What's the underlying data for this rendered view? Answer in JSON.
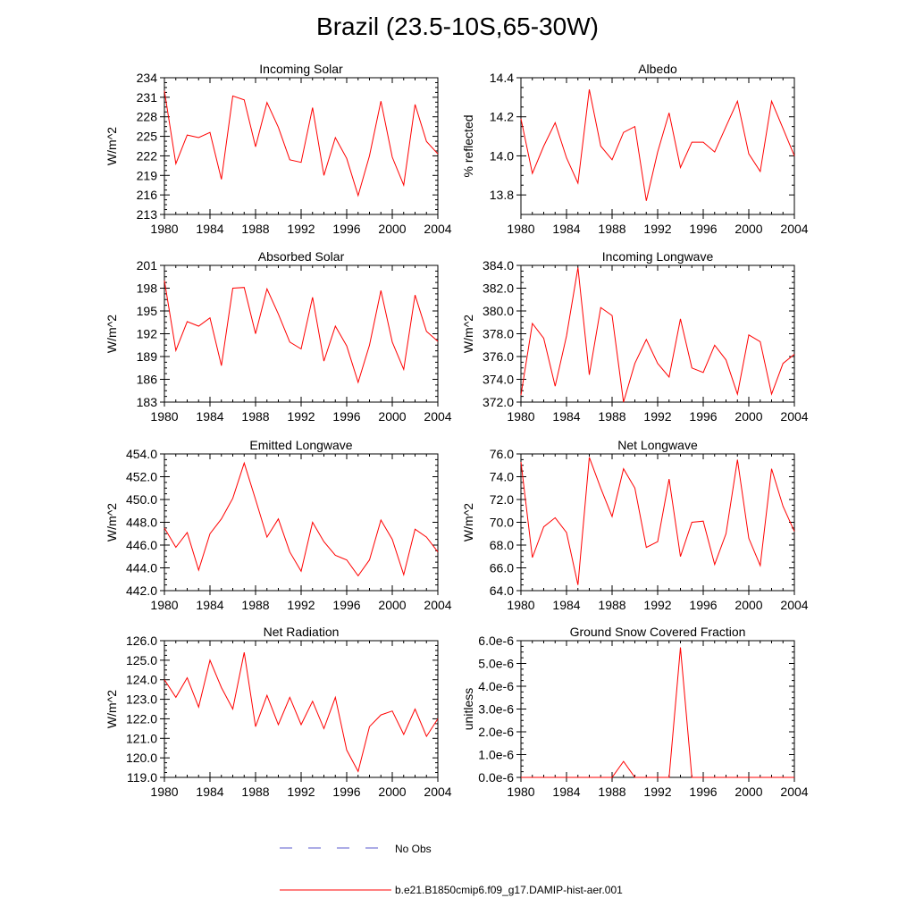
{
  "title": "Brazil (23.5-10S,65-30W)",
  "legend": {
    "entries": [
      {
        "label": "No Obs",
        "style": "dashed",
        "color": "#5a5acd"
      },
      {
        "label": "b.e21.B1850cmip6.f09_g17.DAMIP-hist-aer.001",
        "style": "solid",
        "color": "#ff0000"
      }
    ]
  },
  "chart_data": [
    {
      "type": "line",
      "title": "Incoming Solar",
      "ylabel": "W/m^2",
      "xlim": [
        1980,
        2004
      ],
      "ylim": [
        213,
        234
      ],
      "yticks": [
        213,
        216,
        219,
        222,
        225,
        228,
        231,
        234
      ],
      "ytick_labels": [
        "213",
        "216",
        "219",
        "222",
        "225",
        "228",
        "231",
        "234"
      ],
      "xticks": [
        1980,
        1984,
        1988,
        1992,
        1996,
        2000,
        2004
      ],
      "series": [
        {
          "color": "#ff0000",
          "x": [
            1980,
            1981,
            1982,
            1983,
            1984,
            1985,
            1986,
            1987,
            1988,
            1989,
            1990,
            1991,
            1992,
            1993,
            1994,
            1995,
            1996,
            1997,
            1998,
            1999,
            2000,
            2001,
            2002,
            2003,
            2004
          ],
          "values": [
            232.0,
            220.8,
            225.2,
            224.8,
            225.6,
            218.4,
            231.2,
            230.6,
            223.4,
            230.2,
            226.4,
            221.4,
            221.0,
            229.4,
            219.0,
            224.8,
            221.6,
            215.9,
            222.0,
            230.4,
            221.8,
            217.5,
            229.9,
            224.2,
            222.3
          ]
        }
      ]
    },
    {
      "type": "line",
      "title": "Albedo",
      "ylabel": "% reflected",
      "xlim": [
        1980,
        2004
      ],
      "ylim": [
        13.7,
        14.4
      ],
      "yticks": [
        13.8,
        14.0,
        14.2,
        14.4
      ],
      "ytick_labels": [
        "13.8",
        "14.0",
        "14.2",
        "14.4"
      ],
      "xticks": [
        1980,
        1984,
        1988,
        1992,
        1996,
        2000,
        2004
      ],
      "series": [
        {
          "color": "#ff0000",
          "x": [
            1980,
            1981,
            1982,
            1983,
            1984,
            1985,
            1986,
            1987,
            1988,
            1989,
            1990,
            1991,
            1992,
            1993,
            1994,
            1995,
            1996,
            1997,
            1998,
            1999,
            2000,
            2001,
            2002,
            2003,
            2004
          ],
          "values": [
            14.19,
            13.91,
            14.05,
            14.17,
            13.99,
            13.86,
            14.34,
            14.05,
            13.98,
            14.12,
            14.15,
            13.77,
            14.02,
            14.22,
            13.94,
            14.07,
            14.07,
            14.02,
            14.15,
            14.28,
            14.01,
            13.92,
            14.28,
            14.14,
            14.0
          ]
        }
      ]
    },
    {
      "type": "line",
      "title": "Absorbed Solar",
      "ylabel": "W/m^2",
      "xlim": [
        1980,
        2004
      ],
      "ylim": [
        183,
        201
      ],
      "yticks": [
        183,
        186,
        189,
        192,
        195,
        198,
        201
      ],
      "ytick_labels": [
        "183",
        "186",
        "189",
        "192",
        "195",
        "198",
        "201"
      ],
      "xticks": [
        1980,
        1984,
        1988,
        1992,
        1996,
        2000,
        2004
      ],
      "series": [
        {
          "color": "#ff0000",
          "x": [
            1980,
            1981,
            1982,
            1983,
            1984,
            1985,
            1986,
            1987,
            1988,
            1989,
            1990,
            1991,
            1992,
            1993,
            1994,
            1995,
            1996,
            1997,
            1998,
            1999,
            2000,
            2001,
            2002,
            2003,
            2004
          ],
          "values": [
            199.0,
            189.8,
            193.6,
            193.0,
            194.1,
            187.8,
            198.0,
            198.1,
            192.0,
            197.9,
            194.6,
            190.9,
            190.0,
            196.8,
            188.4,
            193.0,
            190.4,
            185.6,
            190.5,
            197.7,
            190.9,
            187.3,
            197.1,
            192.3,
            191.0
          ]
        }
      ]
    },
    {
      "type": "line",
      "title": "Incoming Longwave",
      "ylabel": "W/m^2",
      "xlim": [
        1980,
        2004
      ],
      "ylim": [
        372.0,
        384.0
      ],
      "yticks": [
        372.0,
        374.0,
        376.0,
        378.0,
        380.0,
        382.0,
        384.0
      ],
      "ytick_labels": [
        "372.0",
        "374.0",
        "376.0",
        "378.0",
        "380.0",
        "382.0",
        "384.0"
      ],
      "xticks": [
        1980,
        1984,
        1988,
        1992,
        1996,
        2000,
        2004
      ],
      "series": [
        {
          "color": "#ff0000",
          "x": [
            1980,
            1981,
            1982,
            1983,
            1984,
            1985,
            1986,
            1987,
            1988,
            1989,
            1990,
            1991,
            1992,
            1993,
            1994,
            1995,
            1996,
            1997,
            1998,
            1999,
            2000,
            2001,
            2002,
            2003,
            2004
          ],
          "values": [
            372.6,
            378.9,
            377.6,
            373.4,
            377.8,
            383.8,
            374.4,
            380.3,
            379.6,
            372.0,
            375.4,
            377.5,
            375.4,
            374.2,
            379.3,
            375.0,
            374.6,
            377.0,
            375.7,
            372.7,
            377.9,
            377.3,
            372.7,
            375.4,
            376.2
          ]
        }
      ]
    },
    {
      "type": "line",
      "title": "Emitted Longwave",
      "ylabel": "W/m^2",
      "xlim": [
        1980,
        2004
      ],
      "ylim": [
        442.0,
        454.0
      ],
      "yticks": [
        442.0,
        444.0,
        446.0,
        448.0,
        450.0,
        452.0,
        454.0
      ],
      "ytick_labels": [
        "442.0",
        "444.0",
        "446.0",
        "448.0",
        "450.0",
        "452.0",
        "454.0"
      ],
      "xticks": [
        1980,
        1984,
        1988,
        1992,
        1996,
        2000,
        2004
      ],
      "series": [
        {
          "color": "#ff0000",
          "x": [
            1980,
            1981,
            1982,
            1983,
            1984,
            1985,
            1986,
            1987,
            1988,
            1989,
            1990,
            1991,
            1992,
            1993,
            1994,
            1995,
            1996,
            1997,
            1998,
            1999,
            2000,
            2001,
            2002,
            2003,
            2004
          ],
          "values": [
            447.5,
            445.8,
            447.1,
            443.8,
            447.0,
            448.3,
            450.1,
            453.2,
            450.0,
            446.7,
            448.3,
            445.4,
            443.7,
            448.0,
            446.3,
            445.1,
            444.7,
            443.3,
            444.7,
            448.2,
            446.5,
            443.4,
            447.4,
            446.7,
            445.4
          ]
        }
      ]
    },
    {
      "type": "line",
      "title": "Net Longwave",
      "ylabel": "W/m^2",
      "xlim": [
        1980,
        2004
      ],
      "ylim": [
        64.0,
        76.0
      ],
      "yticks": [
        64.0,
        66.0,
        68.0,
        70.0,
        72.0,
        74.0,
        76.0
      ],
      "ytick_labels": [
        "64.0",
        "66.0",
        "68.0",
        "70.0",
        "72.0",
        "74.0",
        "76.0"
      ],
      "xticks": [
        1980,
        1984,
        1988,
        1992,
        1996,
        2000,
        2004
      ],
      "series": [
        {
          "color": "#ff0000",
          "x": [
            1980,
            1981,
            1982,
            1983,
            1984,
            1985,
            1986,
            1987,
            1988,
            1989,
            1990,
            1991,
            1992,
            1993,
            1994,
            1995,
            1996,
            1997,
            1998,
            1999,
            2000,
            2001,
            2002,
            2003,
            2004
          ],
          "values": [
            75.3,
            66.9,
            69.6,
            70.4,
            69.1,
            64.5,
            75.7,
            73.0,
            70.5,
            74.7,
            73.0,
            67.8,
            68.3,
            73.8,
            67.0,
            70.0,
            70.1,
            66.3,
            69.0,
            75.5,
            68.6,
            66.2,
            74.7,
            71.4,
            69.2
          ]
        }
      ]
    },
    {
      "type": "line",
      "title": "Net Radiation",
      "ylabel": "W/m^2",
      "xlim": [
        1980,
        2004
      ],
      "ylim": [
        119.0,
        126.0
      ],
      "yticks": [
        119.0,
        120.0,
        121.0,
        122.0,
        123.0,
        124.0,
        125.0,
        126.0
      ],
      "ytick_labels": [
        "119.0",
        "120.0",
        "121.0",
        "122.0",
        "123.0",
        "124.0",
        "125.0",
        "126.0"
      ],
      "xticks": [
        1980,
        1984,
        1988,
        1992,
        1996,
        2000,
        2004
      ],
      "series": [
        {
          "color": "#ff0000",
          "x": [
            1980,
            1981,
            1982,
            1983,
            1984,
            1985,
            1986,
            1987,
            1988,
            1989,
            1990,
            1991,
            1992,
            1993,
            1994,
            1995,
            1996,
            1997,
            1998,
            1999,
            2000,
            2001,
            2002,
            2003,
            2004
          ],
          "values": [
            124.0,
            123.1,
            124.1,
            122.6,
            125.0,
            123.6,
            122.5,
            125.4,
            121.6,
            123.2,
            121.7,
            123.1,
            121.7,
            122.9,
            121.5,
            123.1,
            120.4,
            119.3,
            121.6,
            122.2,
            122.4,
            121.2,
            122.5,
            121.1,
            122.0
          ]
        }
      ]
    },
    {
      "type": "line",
      "title": "Ground Snow Covered Fraction",
      "ylabel": "unitless",
      "xlim": [
        1980,
        2004
      ],
      "ylim": [
        0,
        6e-06
      ],
      "yticks": [
        0,
        1e-06,
        2e-06,
        3e-06,
        4e-06,
        5e-06,
        6e-06
      ],
      "ytick_labels": [
        "0.0e-6",
        "1.0e-6",
        "2.0e-6",
        "3.0e-6",
        "4.0e-6",
        "5.0e-6",
        "6.0e-6"
      ],
      "xticks": [
        1980,
        1984,
        1988,
        1992,
        1996,
        2000,
        2004
      ],
      "series": [
        {
          "color": "#ff0000",
          "x": [
            1980,
            1981,
            1982,
            1983,
            1984,
            1985,
            1986,
            1987,
            1988,
            1989,
            1990,
            1991,
            1992,
            1993,
            1994,
            1995,
            1996,
            1997,
            1998,
            1999,
            2000,
            2001,
            2002,
            2003,
            2004
          ],
          "values": [
            0,
            0,
            0,
            0,
            0,
            0,
            0,
            0,
            0,
            7e-07,
            0,
            0,
            0,
            0,
            5.7e-06,
            0,
            0,
            0,
            0,
            0,
            0,
            0,
            0,
            0,
            0
          ]
        }
      ]
    }
  ]
}
